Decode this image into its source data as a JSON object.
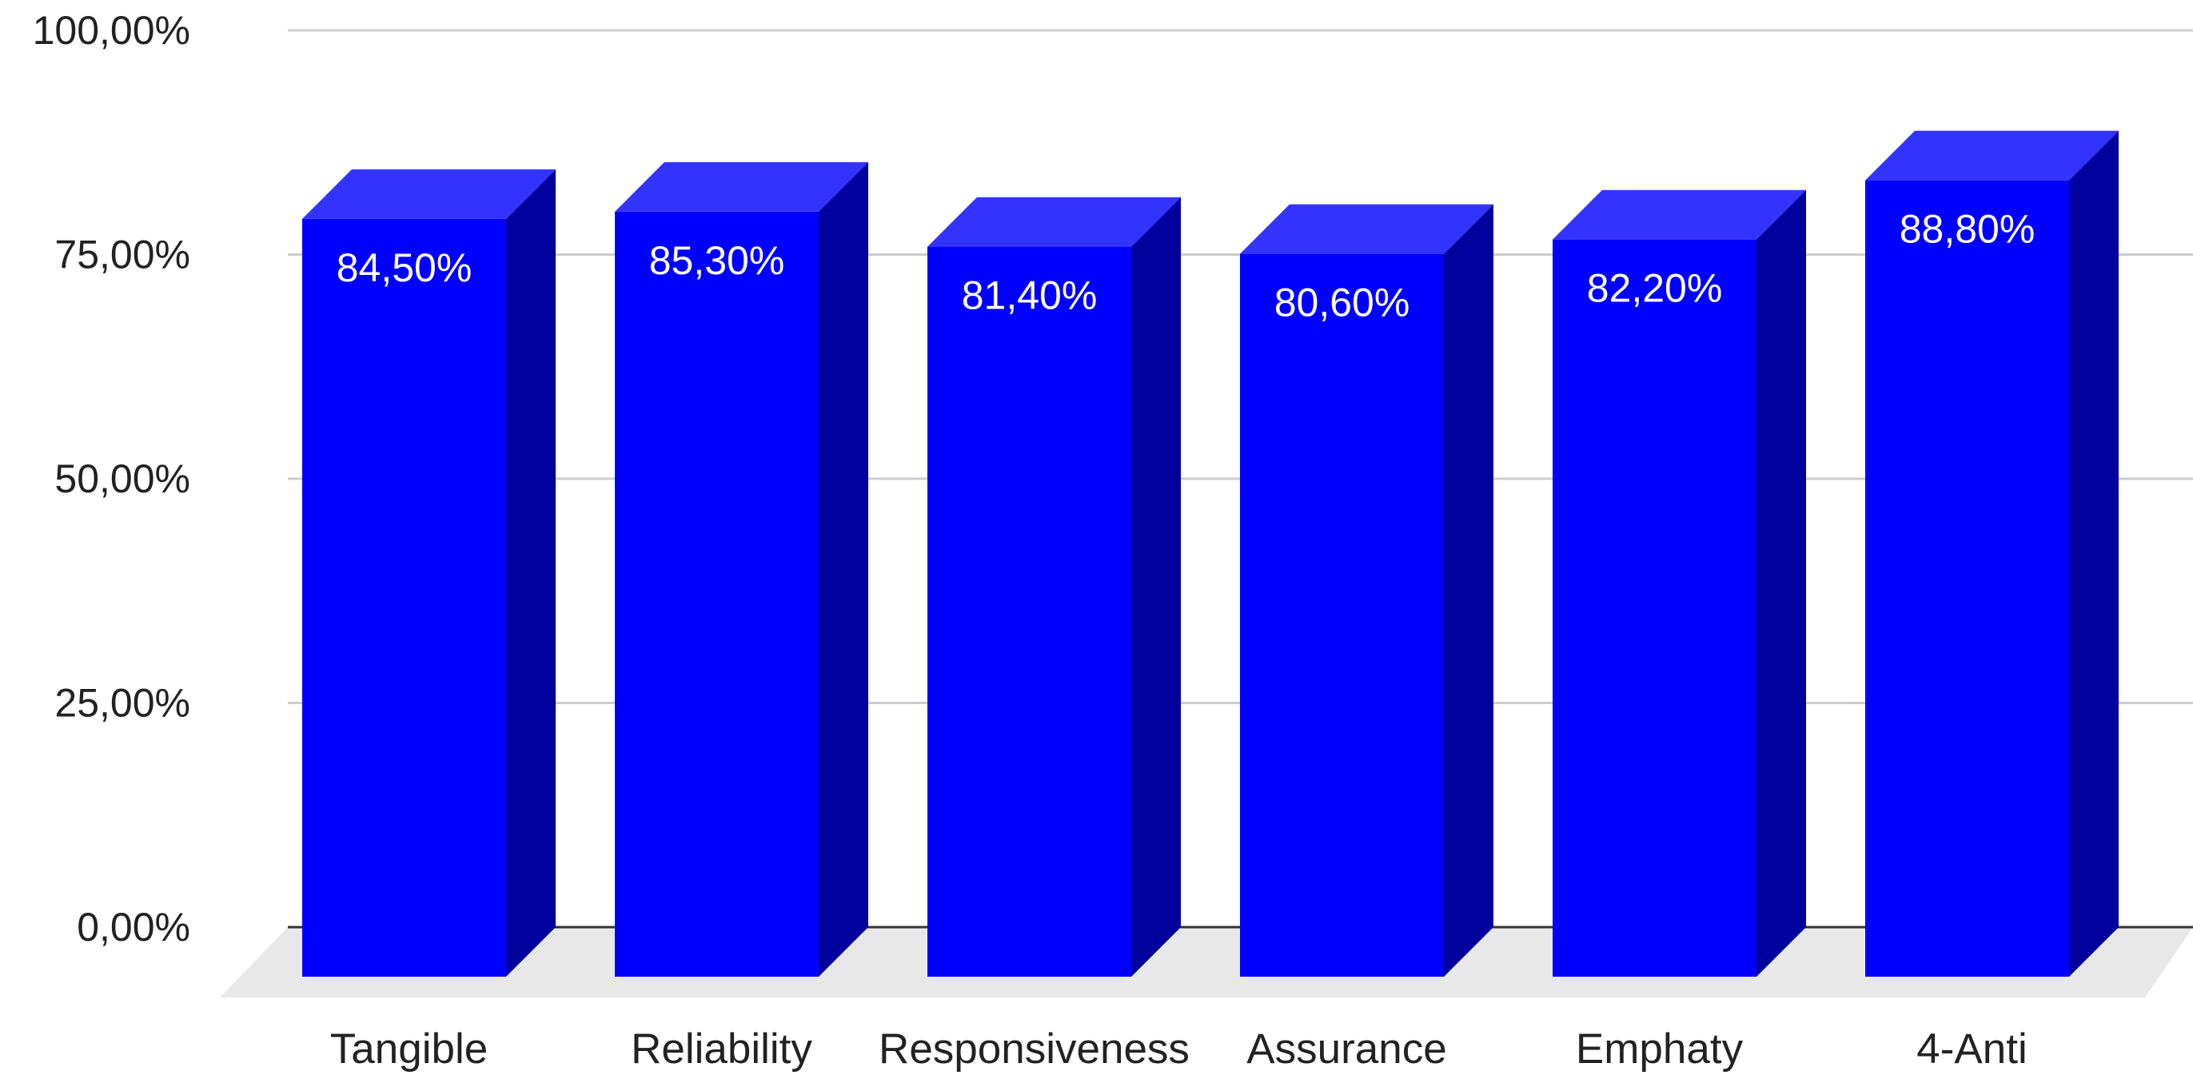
{
  "chart_data": {
    "type": "bar",
    "style": "3d-column",
    "categories": [
      "Tangible",
      "Reliability",
      "Responsiveness",
      "Assurance",
      "Emphaty",
      "4-Anti"
    ],
    "values": [
      84.5,
      85.3,
      81.4,
      80.6,
      82.2,
      88.8
    ],
    "data_labels": [
      "84,50%",
      "85,30%",
      "81,40%",
      "80,60%",
      "82,20%",
      "88,80%"
    ],
    "yticks": [
      "0,00%",
      "25,00%",
      "50,00%",
      "75,00%",
      "100,00%"
    ],
    "ytick_values": [
      0,
      25,
      50,
      75,
      100
    ],
    "ylim": [
      0,
      100
    ],
    "grid": true,
    "legend": "none",
    "title": "",
    "xlabel": "",
    "ylabel": "",
    "colors": {
      "bar_front": "#0000ff",
      "bar_top": "#3333ff",
      "bar_side": "#00009c",
      "grid": "#cccccc",
      "floor": "#e8e8e8",
      "axis": "#333333"
    }
  }
}
